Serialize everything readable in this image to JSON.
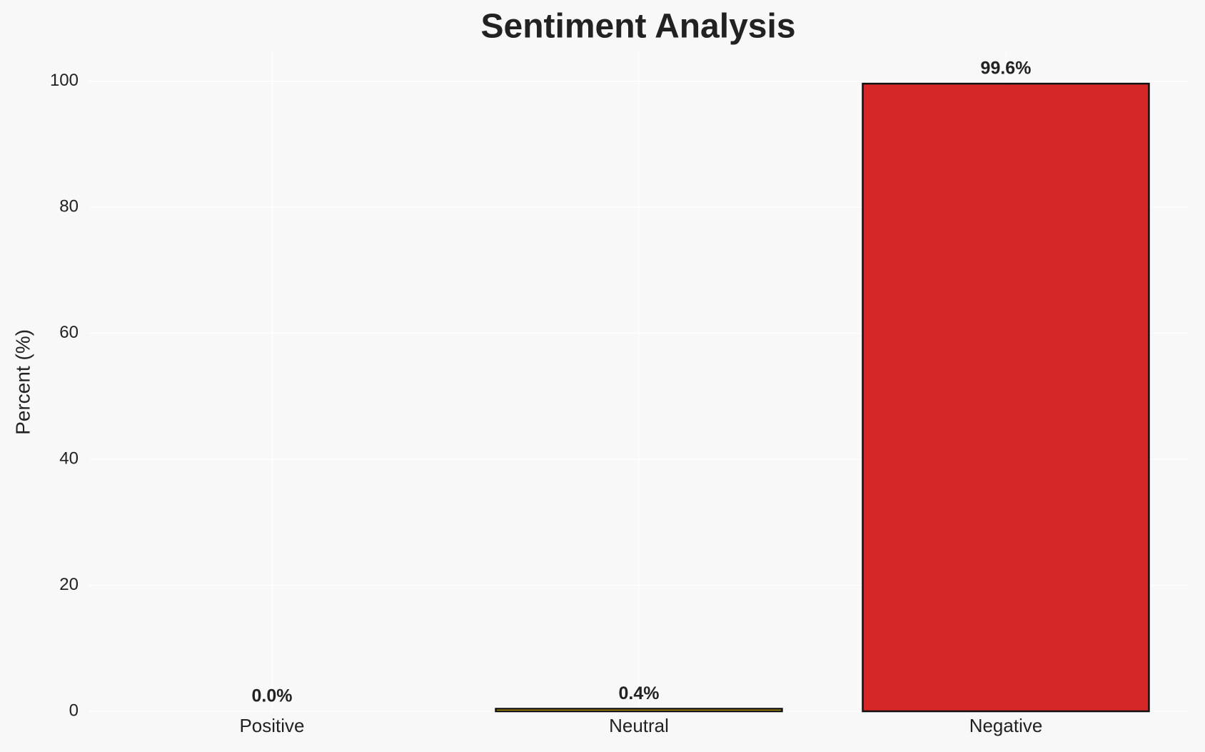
{
  "chart_data": {
    "type": "bar",
    "title": "Sentiment Analysis",
    "ylabel": "Percent (%)",
    "categories": [
      "Positive",
      "Neutral",
      "Negative"
    ],
    "values": [
      0.0,
      0.4,
      99.6
    ],
    "value_labels": [
      "0.0%",
      "0.4%",
      "99.6%"
    ],
    "colors": [
      "#2ca02c",
      "#f1c40f",
      "#d62728"
    ],
    "ylim": [
      0,
      104.6
    ],
    "yticks": [
      0,
      20,
      40,
      60,
      80,
      100
    ],
    "grid": true
  }
}
